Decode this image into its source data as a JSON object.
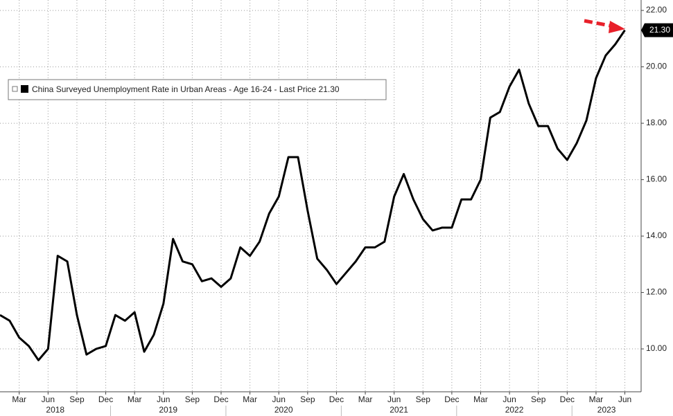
{
  "chart_data": {
    "type": "line",
    "legend": "China Surveyed Unemployment Rate in Urban Areas - Age 16-24 - Last Price 21.30",
    "categories": [
      null,
      null,
      "Mar",
      null,
      null,
      "Jun",
      null,
      null,
      "Sep",
      null,
      null,
      "Dec",
      null,
      null,
      "Mar",
      null,
      null,
      "Jun",
      null,
      null,
      "Sep",
      null,
      null,
      "Dec",
      null,
      null,
      "Mar",
      null,
      null,
      "Jun",
      null,
      null,
      "Sep",
      null,
      null,
      "Dec",
      null,
      null,
      "Mar",
      null,
      null,
      "Jun",
      null,
      null,
      "Sep",
      null,
      null,
      "Dec",
      null,
      null,
      "Mar",
      null,
      null,
      "Jun",
      null,
      null,
      "Sep",
      null,
      null,
      "Dec",
      null,
      null,
      "Mar",
      null,
      null,
      "Jun"
    ],
    "years": [
      "2018",
      "2019",
      "2020",
      "2021",
      "2022",
      "2023"
    ],
    "series": [
      {
        "name": "China Surveyed Unemployment Rate in Urban Areas - Age 16-24",
        "color": "#000000",
        "values": [
          11.2,
          11.0,
          10.4,
          10.1,
          9.6,
          10.0,
          13.3,
          13.1,
          11.2,
          9.8,
          10.0,
          10.1,
          11.2,
          11.0,
          11.3,
          9.9,
          10.5,
          11.6,
          13.9,
          13.1,
          13.0,
          12.4,
          12.5,
          12.2,
          12.5,
          13.6,
          13.3,
          13.8,
          14.8,
          15.4,
          16.8,
          16.8,
          14.9,
          13.2,
          12.8,
          12.3,
          12.7,
          13.1,
          13.6,
          13.6,
          13.8,
          15.4,
          16.2,
          15.3,
          14.6,
          14.2,
          14.3,
          14.3,
          15.3,
          15.3,
          16.0,
          18.2,
          18.4,
          19.3,
          19.9,
          18.7,
          17.9,
          17.9,
          17.1,
          16.7,
          17.3,
          18.1,
          19.6,
          20.4,
          20.8,
          21.3
        ],
        "value_labels": [
          null,
          null,
          null,
          null,
          null,
          null,
          null,
          null,
          null,
          null,
          null,
          null,
          null,
          null,
          null,
          null,
          null,
          null,
          null,
          null,
          null,
          null,
          null,
          null,
          null,
          null,
          null,
          null,
          null,
          null,
          null,
          null,
          null,
          null,
          null,
          null,
          null,
          null,
          null,
          null,
          null,
          null,
          null,
          null,
          null,
          null,
          null,
          null,
          null,
          null,
          null,
          null,
          null,
          null,
          null,
          null,
          null,
          null,
          null,
          null,
          null,
          null,
          null,
          null,
          null,
          "21.30"
        ]
      }
    ],
    "ylim": [
      8.48,
      22.37
    ],
    "yticks": [
      {
        "value": 10,
        "label": "10.00"
      },
      {
        "value": 12,
        "label": "12.00"
      },
      {
        "value": 14,
        "label": "14.00"
      },
      {
        "value": 16,
        "label": "16.00"
      },
      {
        "value": 18,
        "label": "18.00"
      },
      {
        "value": 20,
        "label": "20.00"
      },
      {
        "value": 22,
        "label": "22.00"
      }
    ],
    "grid": true
  }
}
